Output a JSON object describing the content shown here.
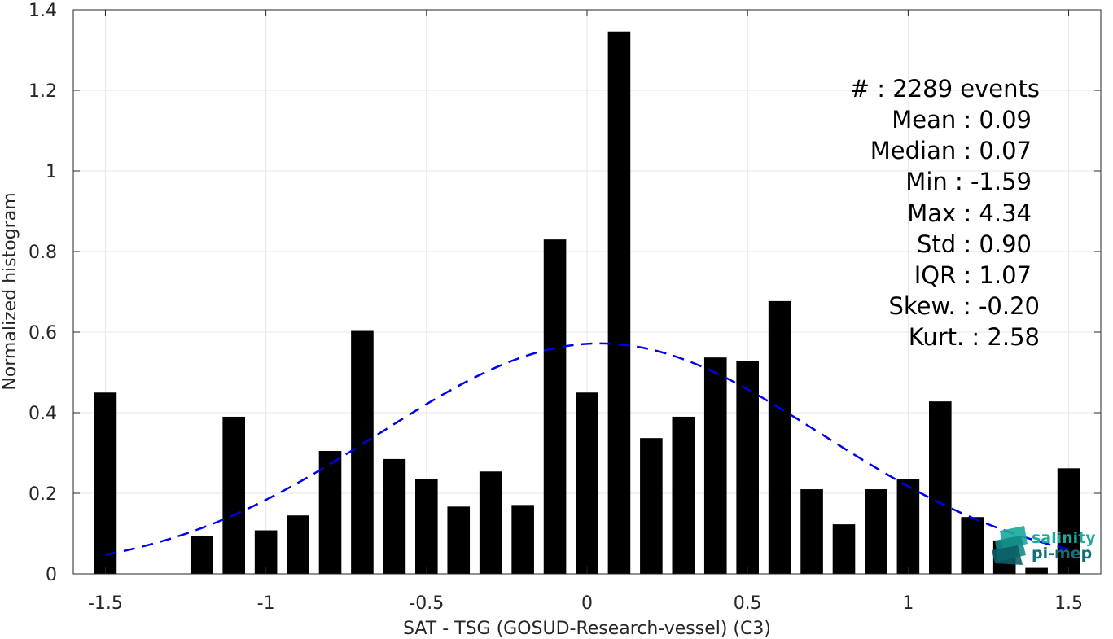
{
  "chart_data": {
    "type": "bar",
    "title": "",
    "xlabel": "SAT - TSG (GOSUD-Research-vessel) (C3)",
    "ylabel": "Normalized histogram",
    "xlim": [
      -1.6,
      1.6
    ],
    "ylim": [
      0,
      1.4
    ],
    "grid": true,
    "x_ticks": [
      -1.5,
      -1,
      -0.5,
      0,
      0.5,
      1,
      1.5
    ],
    "x_tick_labels": [
      "-1.5",
      "-1",
      "-0.5",
      "0",
      "0.5",
      "1",
      "1.5"
    ],
    "y_ticks": [
      0,
      0.2,
      0.4,
      0.6,
      0.8,
      1,
      1.2,
      1.4
    ],
    "y_tick_labels": [
      "0",
      "0.2",
      "0.4",
      "0.6",
      "0.8",
      "1",
      "1.2",
      "1.4"
    ],
    "bar_width": 0.07,
    "bars": {
      "name": "histogram",
      "color": "#000000",
      "x": [
        -1.5,
        -1.4,
        -1.3,
        -1.2,
        -1.1,
        -1.0,
        -0.9,
        -0.8,
        -0.7,
        -0.6,
        -0.5,
        -0.4,
        -0.3,
        -0.2,
        -0.1,
        0.0,
        0.1,
        0.2,
        0.3,
        0.4,
        0.5,
        0.6,
        0.7,
        0.8,
        0.9,
        1.0,
        1.1,
        1.2,
        1.3,
        1.4,
        1.5
      ],
      "values": [
        0.45,
        0.0,
        0.0,
        0.093,
        0.39,
        0.108,
        0.145,
        0.305,
        0.603,
        0.285,
        0.236,
        0.167,
        0.254,
        0.171,
        0.83,
        0.45,
        1.346,
        0.337,
        0.39,
        0.537,
        0.529,
        0.677,
        0.21,
        0.123,
        0.21,
        0.236,
        0.428,
        0.141,
        0.083,
        0.015,
        0.262
      ]
    },
    "fit_curve": {
      "name": "normal fit",
      "color": "#0000ee",
      "style": "dashed",
      "mean": 0.04,
      "std": 0.69,
      "peak": 0.572,
      "x_range": [
        -1.5,
        1.5
      ]
    },
    "stats": [
      {
        "label": "#  : 2289 events"
      },
      {
        "label": "Mean : 0.09"
      },
      {
        "label": "Median : 0.07"
      },
      {
        "label": "Min : -1.59"
      },
      {
        "label": "Max : 4.34"
      },
      {
        "label": "Std : 0.90"
      },
      {
        "label": "IQR : 1.07"
      },
      {
        "label": "Skew. : -0.20"
      },
      {
        "label": "Kurt. : 2.58"
      }
    ]
  },
  "logo": {
    "line1": "salinity",
    "line2": "pi-mep",
    "icon": "layered-map-icon"
  }
}
